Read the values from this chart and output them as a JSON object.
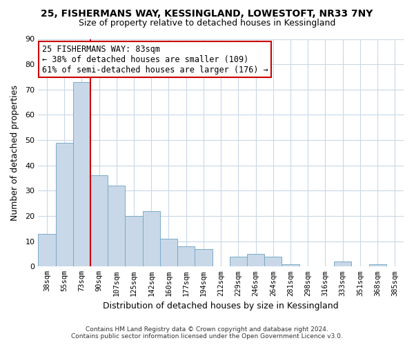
{
  "title": "25, FISHERMANS WAY, KESSINGLAND, LOWESTOFT, NR33 7NY",
  "subtitle": "Size of property relative to detached houses in Kessingland",
  "xlabel": "Distribution of detached houses by size in Kessingland",
  "ylabel": "Number of detached properties",
  "bar_color": "#c8d8e8",
  "bar_edge_color": "#7aaac8",
  "categories": [
    "38sqm",
    "55sqm",
    "73sqm",
    "90sqm",
    "107sqm",
    "125sqm",
    "142sqm",
    "160sqm",
    "177sqm",
    "194sqm",
    "212sqm",
    "229sqm",
    "246sqm",
    "264sqm",
    "281sqm",
    "298sqm",
    "316sqm",
    "333sqm",
    "351sqm",
    "368sqm",
    "385sqm"
  ],
  "values": [
    13,
    49,
    73,
    36,
    32,
    20,
    22,
    11,
    8,
    7,
    0,
    4,
    5,
    4,
    1,
    0,
    0,
    2,
    0,
    1,
    0
  ],
  "ylim": [
    0,
    90
  ],
  "yticks": [
    0,
    10,
    20,
    30,
    40,
    50,
    60,
    70,
    80,
    90
  ],
  "property_line_color": "#cc0000",
  "annotation_title": "25 FISHERMANS WAY: 83sqm",
  "annotation_line1": "← 38% of detached houses are smaller (109)",
  "annotation_line2": "61% of semi-detached houses are larger (176) →",
  "annotation_box_color": "#ffffff",
  "annotation_box_edge_color": "#cc0000",
  "footer_line1": "Contains HM Land Registry data © Crown copyright and database right 2024.",
  "footer_line2": "Contains public sector information licensed under the Open Government Licence v3.0.",
  "background_color": "#ffffff",
  "grid_color": "#c8d8e8"
}
